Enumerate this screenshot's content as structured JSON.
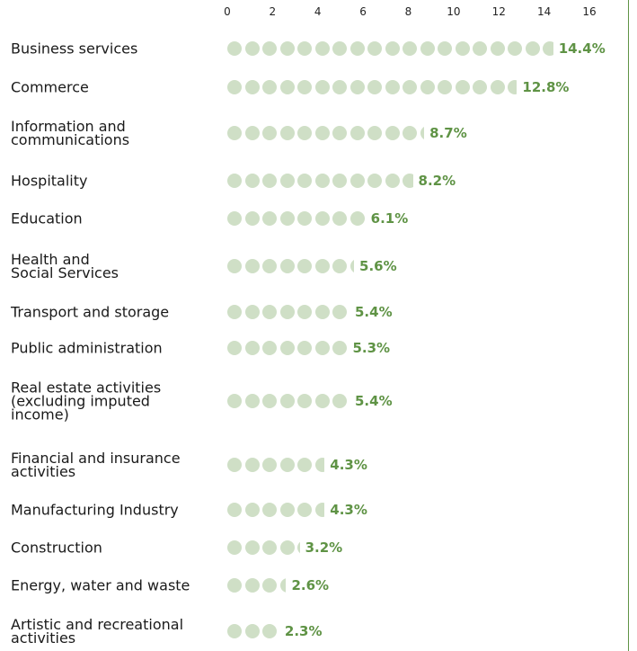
{
  "chart_data": {
    "type": "dotbar",
    "categories": [
      "Business services",
      "Commerce",
      "Information and\ncommunications",
      "Hospitality",
      "Education",
      "Health and\nSocial Services",
      "Transport and storage",
      "Public administration",
      "Real estate activities\n(excluding imputed\nincome)",
      "Financial and insurance\nactivities",
      "Manufacturing Industry",
      "Construction",
      "Energy, water and waste",
      "Artistic and recreational\nactivities"
    ],
    "values": [
      14.4,
      12.8,
      8.7,
      8.2,
      6.1,
      5.6,
      5.4,
      5.3,
      5.4,
      4.3,
      4.3,
      3.2,
      2.6,
      2.3
    ],
    "value_labels": [
      "14.4%",
      "12.8%",
      "8.7%",
      "8.2%",
      "6.1%",
      "5.6%",
      "5.4%",
      "5.3%",
      "5.4%",
      "4.3%",
      "4.3%",
      "3.2%",
      "2.6%",
      "2.3%"
    ],
    "xlim": [
      0,
      16
    ],
    "xticks": [
      0,
      2,
      4,
      6,
      8,
      10,
      12,
      14,
      16
    ],
    "color": "#cfdfc6",
    "label_color": "#5f9345"
  }
}
